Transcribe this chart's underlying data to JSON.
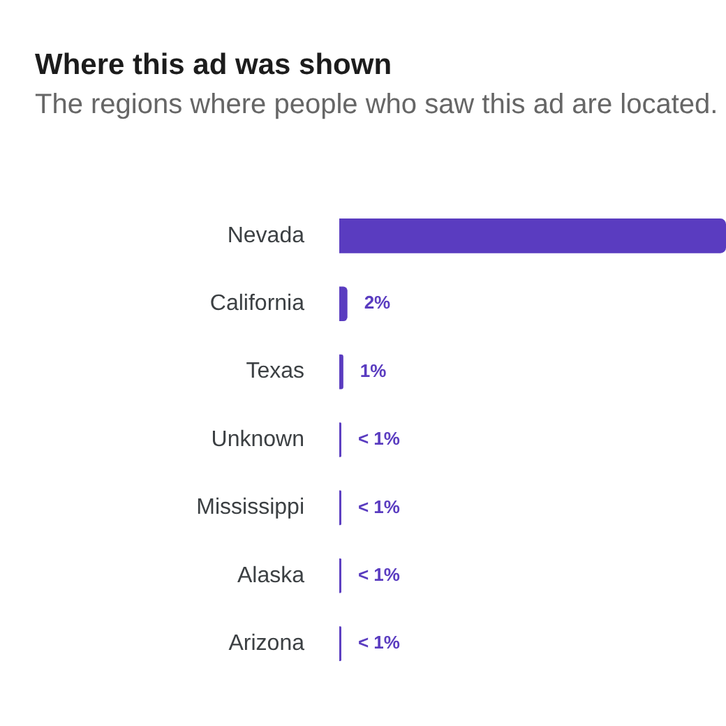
{
  "chart_data": {
    "type": "bar",
    "orientation": "horizontal",
    "title": "Where this ad was shown",
    "subtitle": "The regions where people who saw this ad are located.",
    "categories": [
      "Nevada",
      "California",
      "Texas",
      "Unknown",
      "Mississippi",
      "Alaska",
      "Arizona"
    ],
    "values": [
      95,
      2,
      1,
      0.5,
      0.5,
      0.5,
      0.5
    ],
    "value_labels": [
      null,
      "2%",
      "1%",
      "< 1%",
      "< 1%",
      "< 1%",
      "< 1%"
    ],
    "color": "#5a3cc0"
  }
}
